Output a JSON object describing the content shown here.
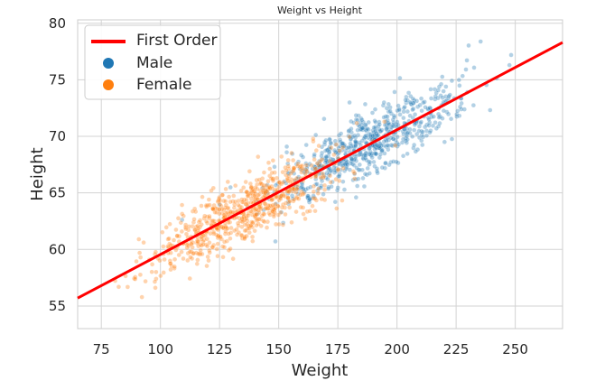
{
  "chart_data": {
    "type": "scatter",
    "title": "Weight vs Height",
    "xlabel": "Weight",
    "ylabel": "Height",
    "xlim": [
      65,
      270
    ],
    "ylim": [
      53,
      80.3
    ],
    "xticks": [
      75,
      100,
      125,
      150,
      175,
      200,
      225,
      250
    ],
    "yticks": [
      55,
      60,
      65,
      70,
      75,
      80
    ],
    "grid": true,
    "legend_position": "top-left",
    "legend": {
      "entries": [
        {
          "label": "First Order",
          "kind": "line",
          "color": "#ff0000"
        },
        {
          "label": "Male",
          "kind": "marker",
          "color": "#1f77b4"
        },
        {
          "label": "Female",
          "kind": "marker",
          "color": "#ff7f0e"
        }
      ]
    },
    "fit_line": {
      "name": "First Order",
      "color": "#ff0000",
      "points": [
        {
          "x": 65,
          "y": 55.7
        },
        {
          "x": 270,
          "y": 78.3
        }
      ]
    },
    "series": [
      {
        "name": "Male",
        "color": "#1f77b4",
        "weight_center": 187,
        "weight_spread": 19.5,
        "height_spread": 1.4,
        "point_count": 700
      },
      {
        "name": "Female",
        "color": "#ff7f0e",
        "weight_center": 136,
        "weight_spread": 19,
        "height_spread": 1.45,
        "point_count": 700
      }
    ]
  }
}
